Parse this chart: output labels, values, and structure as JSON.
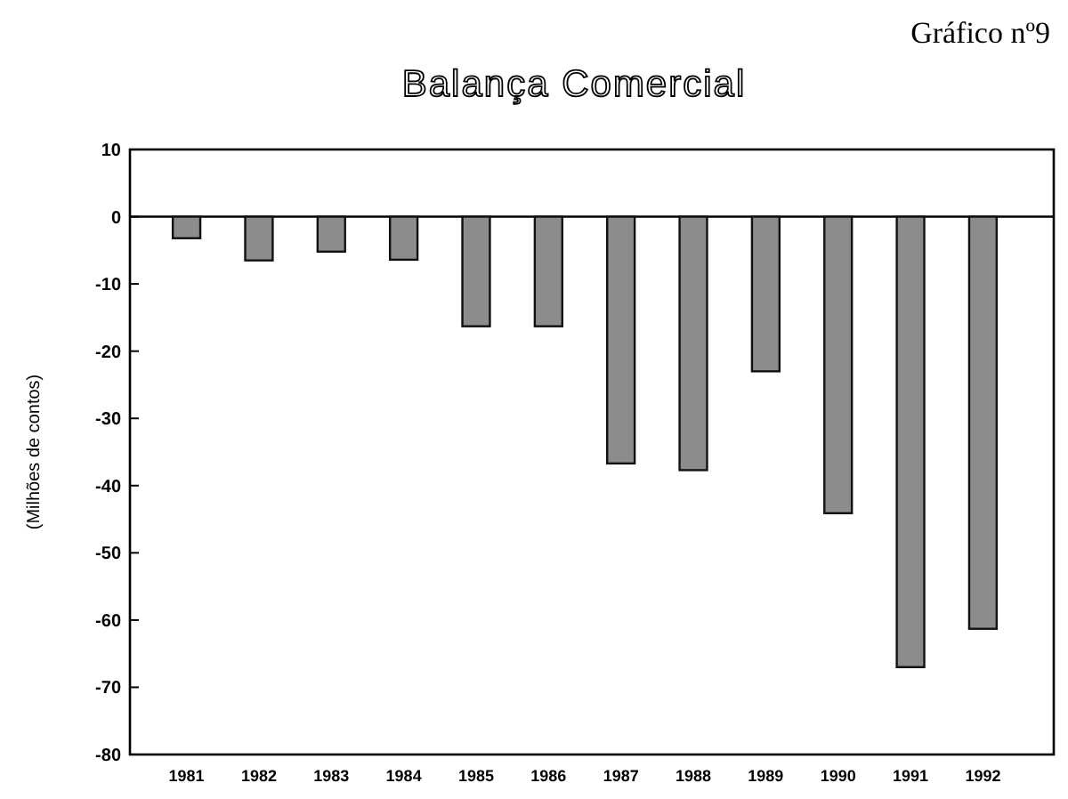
{
  "chart_data": {
    "type": "bar",
    "title": "Balança Comercial",
    "ylabel": "(Milhões de contos)",
    "annotations": [
      "Gráfico nº9"
    ],
    "categories": [
      "1981",
      "1982",
      "1983",
      "1984",
      "1985",
      "1986",
      "1987",
      "1988",
      "1989",
      "1990",
      "1991",
      "1992"
    ],
    "values": [
      -3.2,
      -6.5,
      -5.2,
      -6.4,
      -16.3,
      -16.3,
      -36.7,
      -37.7,
      -23,
      -44.1,
      -67,
      -61.3
    ],
    "color": "#8c8c8c",
    "ylim": [
      -80,
      10
    ],
    "yticks": [
      10,
      0,
      -10,
      -20,
      -30,
      -40,
      -50,
      -60,
      -70,
      -80
    ]
  }
}
